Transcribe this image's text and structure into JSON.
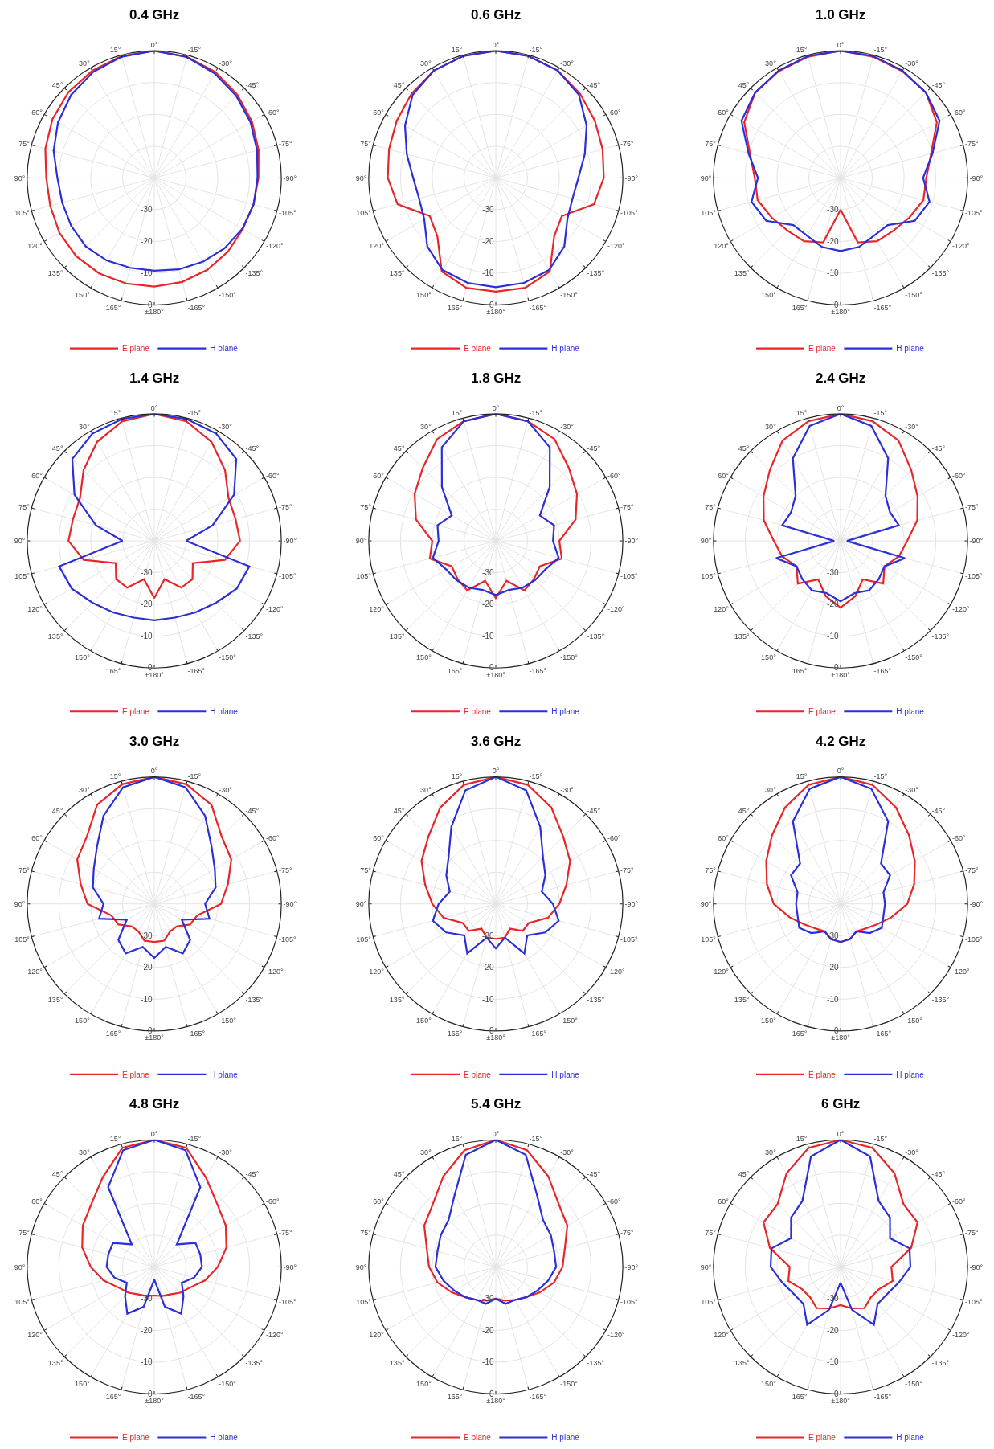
{
  "chart_data": [
    {
      "type": "radar",
      "title": "0.4 GHz",
      "categories": [
        "0°",
        "-15°",
        "-30°",
        "-45°",
        "-60°",
        "-75°",
        "-90°",
        "-105°",
        "-120°",
        "-135°",
        "-150°",
        "-165°",
        "±180°",
        "165°",
        "150°",
        "135°",
        "120°",
        "105°",
        "90°",
        "75°",
        "60°",
        "45°",
        "30°",
        "15°"
      ],
      "ylim": [
        -40,
        0
      ],
      "yticks": [
        -30,
        -20,
        -10,
        0
      ],
      "grid": true,
      "legend": "bottom",
      "series": [
        {
          "name": "E plane",
          "color": "#e8262a",
          "values": [
            0,
            -0.5,
            -1.5,
            -3,
            -4.5,
            -6,
            -7.2,
            -7.7,
            -7.8,
            -7.2,
            -6.6,
            -6.1,
            -5.8,
            -5.6,
            -5.3,
            -5.2,
            -5.5,
            -6.1,
            -6,
            -4.5,
            -3,
            -1.8,
            -1,
            -0.3
          ]
        },
        {
          "name": "H plane",
          "color": "#2b2fd8",
          "values": [
            0,
            -0.6,
            -2,
            -3.5,
            -5,
            -6.5,
            -7.5,
            -7.6,
            -8,
            -8.7,
            -9.5,
            -10.2,
            -10.8,
            -10.7,
            -10,
            -9.5,
            -9.8,
            -10,
            -9.5,
            -7.2,
            -5,
            -3,
            -1.5,
            -0.5
          ]
        }
      ]
    },
    {
      "type": "radar",
      "title": "0.6 GHz",
      "categories": [
        "0°",
        "-15°",
        "-30°",
        "-45°",
        "-60°",
        "-75°",
        "-90°",
        "-105°",
        "-120°",
        "-135°",
        "-150°",
        "-165°",
        "±180°",
        "165°",
        "150°",
        "135°",
        "120°",
        "105°",
        "90°",
        "75°",
        "60°",
        "45°",
        "30°",
        "15°"
      ],
      "ylim": [
        -40,
        0
      ],
      "yticks": [
        -30,
        -20,
        -10,
        0
      ],
      "grid": true,
      "legend": "bottom",
      "series": [
        {
          "name": "E plane",
          "color": "#e8262a",
          "values": [
            0,
            -0.3,
            -1,
            -2.5,
            -4,
            -5.2,
            -6,
            -8,
            -16,
            -14,
            -6,
            -4.2,
            -4.2,
            -4.2,
            -6,
            -14,
            -16,
            -8,
            -6,
            -5.2,
            -4,
            -2.5,
            -1,
            -0.3
          ]
        },
        {
          "name": "H plane",
          "color": "#2b2fd8",
          "values": [
            0,
            -0.3,
            -1,
            -3,
            -7,
            -11,
            -14,
            -15,
            -14,
            -9.5,
            -6.5,
            -5.8,
            -5.6,
            -5.8,
            -6.5,
            -9.5,
            -14,
            -15,
            -14,
            -11,
            -7,
            -3,
            -1,
            -0.3
          ]
        }
      ]
    },
    {
      "type": "radar",
      "title": "1.0 GHz",
      "categories": [
        "0°",
        "-15°",
        "-30°",
        "-45°",
        "-60°",
        "-75°",
        "-90°",
        "-105°",
        "-120°",
        "-135°",
        "-150°",
        "-165°",
        "±180°",
        "165°",
        "150°",
        "135°",
        "120°",
        "105°",
        "90°",
        "75°",
        "60°",
        "45°",
        "30°",
        "15°"
      ],
      "ylim": [
        -40,
        0
      ],
      "yticks": [
        -30,
        -20,
        -10,
        0
      ],
      "grid": true,
      "legend": "bottom",
      "series": [
        {
          "name": "E plane",
          "color": "#e8262a",
          "values": [
            0,
            -0.5,
            -1.2,
            -2,
            -5,
            -10.5,
            -13,
            -13,
            -15,
            -16.5,
            -17,
            -19,
            -30,
            -19,
            -17,
            -16.5,
            -15,
            -13,
            -13,
            -10.5,
            -5,
            -2,
            -1.2,
            -0.5
          ]
        },
        {
          "name": "H plane",
          "color": "#2b2fd8",
          "values": [
            0,
            -0.3,
            -1,
            -2,
            -4,
            -10,
            -14,
            -11,
            -13,
            -19,
            -19,
            -17.5,
            -17,
            -17.5,
            -19,
            -19,
            -13,
            -11,
            -14,
            -10,
            -4,
            -2,
            -1,
            -0.3
          ]
        }
      ]
    },
    {
      "type": "radar",
      "title": "1.4 GHz",
      "categories": [
        "0°",
        "-15°",
        "-30°",
        "-45°",
        "-60°",
        "-75°",
        "-90°",
        "-105°",
        "-120°",
        "-135°",
        "-150°",
        "-165°",
        "±180°",
        "165°",
        "150°",
        "135°",
        "120°",
        "105°",
        "90°",
        "75°",
        "60°",
        "45°",
        "30°",
        "15°"
      ],
      "ylim": [
        -40,
        0
      ],
      "yticks": [
        -30,
        -20,
        -10,
        0
      ],
      "grid": true,
      "legend": "bottom",
      "series": [
        {
          "name": "E plane",
          "color": "#e8262a",
          "values": [
            0,
            -1,
            -4,
            -8.5,
            -13,
            -13.5,
            -13,
            -17,
            -26,
            -23,
            -23,
            -27.5,
            -22,
            -27.5,
            -23,
            -23,
            -26,
            -17,
            -13,
            -13.5,
            -13,
            -8.5,
            -4,
            -1
          ]
        },
        {
          "name": "H plane",
          "color": "#2b2fd8",
          "values": [
            0,
            -0.3,
            -1,
            -3.5,
            -11,
            -21,
            -30,
            -9,
            -10,
            -12.5,
            -14,
            -15,
            -15,
            -15,
            -14,
            -12.5,
            -10,
            -9,
            -30,
            -21,
            -11,
            -3.5,
            -1,
            -0.3
          ]
        }
      ]
    },
    {
      "type": "radar",
      "title": "1.8 GHz",
      "categories": [
        "0°",
        "-15°",
        "-30°",
        "-45°",
        "-60°",
        "-75°",
        "-90°",
        "-105°",
        "-120°",
        "-135°",
        "-150°",
        "-165°",
        "±180°",
        "165°",
        "150°",
        "135°",
        "120°",
        "105°",
        "90°",
        "75°",
        "60°",
        "45°",
        "30°",
        "15°"
      ],
      "ylim": [
        -40,
        0
      ],
      "yticks": [
        -30,
        -20,
        -10,
        0
      ],
      "grid": true,
      "legend": "bottom",
      "series": [
        {
          "name": "E plane",
          "color": "#e8262a",
          "values": [
            0,
            -1,
            -3,
            -7.5,
            -10.5,
            -14,
            -20,
            -18.5,
            -24,
            -23,
            -22,
            -27,
            -22,
            -27,
            -22,
            -23,
            -24,
            -18.5,
            -20,
            -14,
            -10.5,
            -7.5,
            -3,
            -1
          ]
        },
        {
          "name": "H plane",
          "color": "#2b2fd8",
          "values": [
            0,
            -1,
            -6,
            -16,
            -24,
            -21,
            -22,
            -19.5,
            -22,
            -22.5,
            -23,
            -24,
            -23,
            -24,
            -23,
            -22.5,
            -22,
            -19.5,
            -22,
            -21,
            -24,
            -16,
            -6,
            -1
          ]
        }
      ]
    },
    {
      "type": "radar",
      "title": "2.4 GHz",
      "categories": [
        "0°",
        "-15°",
        "-30°",
        "-45°",
        "-60°",
        "-75°",
        "-90°",
        "-105°",
        "-120°",
        "-135°",
        "-150°",
        "-165°",
        "±180°",
        "165°",
        "150°",
        "135°",
        "120°",
        "105°",
        "90°",
        "75°",
        "60°",
        "45°",
        "30°",
        "15°"
      ],
      "ylim": [
        -40,
        0
      ],
      "yticks": [
        -30,
        -20,
        -10,
        0
      ],
      "grid": true,
      "legend": "bottom",
      "series": [
        {
          "name": "E plane",
          "color": "#e8262a",
          "values": [
            0,
            -1,
            -3.5,
            -8.5,
            -12,
            -15,
            -19,
            -21,
            -24,
            -21,
            -26,
            -22,
            -19,
            -22,
            -26,
            -21,
            -24,
            -21,
            -19,
            -15,
            -12,
            -8.5,
            -3.5,
            -1
          ]
        },
        {
          "name": "H plane",
          "color": "#2b2fd8",
          "values": [
            0,
            -2.5,
            -10,
            -20,
            -22,
            -21,
            -38,
            -19,
            -24,
            -23,
            -22,
            -23,
            -21,
            -23,
            -22,
            -23,
            -24,
            -19,
            -38,
            -21,
            -22,
            -20,
            -10,
            -2.5
          ]
        }
      ]
    },
    {
      "type": "radar",
      "title": "3.0 GHz",
      "categories": [
        "0°",
        "-15°",
        "-30°",
        "-45°",
        "-60°",
        "-75°",
        "-90°",
        "-105°",
        "-120°",
        "-135°",
        "-150°",
        "-165°",
        "±180°",
        "165°",
        "150°",
        "135°",
        "120°",
        "105°",
        "90°",
        "75°",
        "60°",
        "45°",
        "30°",
        "15°"
      ],
      "ylim": [
        -40,
        0
      ],
      "yticks": [
        -30,
        -20,
        -10,
        0
      ],
      "grid": true,
      "legend": "bottom",
      "series": [
        {
          "name": "E plane",
          "color": "#e8262a",
          "values": [
            0,
            -1,
            -4,
            -10,
            -12,
            -16,
            -19,
            -26,
            -27,
            -30,
            -30,
            -28,
            -28,
            -28,
            -30,
            -30,
            -27,
            -26,
            -19,
            -16,
            -12,
            -10,
            -4,
            -1
          ]
        },
        {
          "name": "H plane",
          "color": "#2b2fd8",
          "values": [
            0,
            -2,
            -8,
            -14.5,
            -18,
            -20,
            -24,
            -22,
            -30,
            -24,
            -22,
            -26,
            -23,
            -26,
            -22,
            -24,
            -30,
            -22,
            -24,
            -20,
            -18,
            -14.5,
            -8,
            -2
          ]
        }
      ]
    },
    {
      "type": "radar",
      "title": "3.6 GHz",
      "categories": [
        "0°",
        "-15°",
        "-30°",
        "-45°",
        "-60°",
        "-75°",
        "-90°",
        "-105°",
        "-120°",
        "-135°",
        "-150°",
        "-165°",
        "±180°",
        "165°",
        "150°",
        "135°",
        "120°",
        "105°",
        "90°",
        "75°",
        "60°",
        "45°",
        "30°",
        "15°"
      ],
      "ylim": [
        -40,
        0
      ],
      "yticks": [
        -30,
        -20,
        -10,
        0
      ],
      "grid": true,
      "legend": "bottom",
      "series": [
        {
          "name": "E plane",
          "color": "#e8262a",
          "values": [
            0,
            -1.2,
            -5,
            -10,
            -13,
            -17,
            -20,
            -23,
            -28,
            -28,
            -31,
            -29,
            -29,
            -29,
            -31,
            -28,
            -28,
            -23,
            -20,
            -17,
            -13,
            -10,
            -5,
            -1.2
          ]
        },
        {
          "name": "H plane",
          "color": "#2b2fd8",
          "values": [
            0,
            -3,
            -12,
            -19,
            -22,
            -25,
            -22,
            -19.5,
            -22,
            -26,
            -22,
            -29,
            -26,
            -29,
            -22,
            -26,
            -22,
            -19.5,
            -22,
            -25,
            -22,
            -19,
            -12,
            -3
          ]
        }
      ]
    },
    {
      "type": "radar",
      "title": "4.2 GHz",
      "categories": [
        "0°",
        "-15°",
        "-30°",
        "-45°",
        "-60°",
        "-75°",
        "-90°",
        "-105°",
        "-120°",
        "-135°",
        "-150°",
        "-165°",
        "±180°",
        "165°",
        "150°",
        "135°",
        "120°",
        "105°",
        "90°",
        "75°",
        "60°",
        "45°",
        "30°",
        "15°"
      ],
      "ylim": [
        -40,
        0
      ],
      "yticks": [
        -30,
        -20,
        -10,
        0
      ],
      "grid": true,
      "legend": "bottom",
      "series": [
        {
          "name": "E plane",
          "color": "#e8262a",
          "values": [
            0,
            -1.2,
            -5,
            -9.5,
            -13,
            -16,
            -19,
            -23.5,
            -27,
            -29,
            -30,
            -28.5,
            -28,
            -28.5,
            -30,
            -29,
            -27,
            -23.5,
            -19,
            -16,
            -13,
            -9.5,
            -5,
            -1.2
          ]
        },
        {
          "name": "H plane",
          "color": "#2b2fd8",
          "values": [
            0,
            -2.5,
            -10,
            -22,
            -22,
            -26,
            -26,
            -26,
            -25,
            -27,
            -30,
            -28.5,
            -28,
            -28.5,
            -30,
            -27,
            -25,
            -26,
            -26,
            -26,
            -22,
            -22,
            -10,
            -2.5
          ]
        }
      ]
    },
    {
      "type": "radar",
      "title": "4.8 GHz",
      "categories": [
        "0°",
        "-15°",
        "-30°",
        "-45°",
        "-60°",
        "-75°",
        "-90°",
        "-105°",
        "-120°",
        "-135°",
        "-150°",
        "-165°",
        "±180°",
        "165°",
        "150°",
        "135°",
        "120°",
        "105°",
        "90°",
        "75°",
        "60°",
        "45°",
        "30°",
        "15°"
      ],
      "ylim": [
        -40,
        0
      ],
      "yticks": [
        -30,
        -20,
        -10,
        0
      ],
      "grid": true,
      "legend": "bottom",
      "series": [
        {
          "name": "E plane",
          "color": "#e8262a",
          "values": [
            0,
            -1.2,
            -7.5,
            -12,
            -14,
            -16.5,
            -20,
            -23.5,
            -27,
            -28.5,
            -30,
            -30.5,
            -31,
            -30.5,
            -30,
            -28.5,
            -27,
            -23.5,
            -20,
            -16.5,
            -14,
            -12,
            -7.5,
            -1.2
          ]
        },
        {
          "name": "H plane",
          "color": "#2b2fd8",
          "values": [
            0,
            -2,
            -11,
            -30,
            -25,
            -25,
            -25,
            -27,
            -30,
            -27,
            -23,
            -27,
            -36,
            -27,
            -23,
            -27,
            -30,
            -27,
            -25,
            -25,
            -25,
            -30,
            -11,
            -2
          ]
        }
      ]
    },
    {
      "type": "radar",
      "title": "5.4 GHz",
      "categories": [
        "0°",
        "-15°",
        "-30°",
        "-45°",
        "-60°",
        "-75°",
        "-90°",
        "-105°",
        "-120°",
        "-135°",
        "-150°",
        "-165°",
        "±180°",
        "165°",
        "150°",
        "135°",
        "120°",
        "105°",
        "90°",
        "75°",
        "60°",
        "45°",
        "30°",
        "15°"
      ],
      "ylim": [
        -40,
        0
      ],
      "yticks": [
        -30,
        -20,
        -10,
        0
      ],
      "grid": true,
      "legend": "bottom",
      "series": [
        {
          "name": "E plane",
          "color": "#e8262a",
          "values": [
            0,
            -2,
            -7,
            -12,
            -14,
            -17.5,
            -19,
            -21,
            -24,
            -26.5,
            -28,
            -29,
            -30,
            -29,
            -28,
            -26.5,
            -24,
            -21,
            -19,
            -17.5,
            -14,
            -12,
            -7,
            -2
          ]
        },
        {
          "name": "H plane",
          "color": "#2b2fd8",
          "values": [
            0,
            -3.5,
            -14,
            -19,
            -20,
            -21,
            -21,
            -23,
            -25,
            -26.5,
            -28,
            -28,
            -30,
            -28,
            -28,
            -26.5,
            -25,
            -23,
            -21,
            -21,
            -20,
            -19,
            -14,
            -3.5
          ]
        }
      ]
    },
    {
      "type": "radar",
      "title": "6 GHz",
      "categories": [
        "0°",
        "-15°",
        "-30°",
        "-45°",
        "-60°",
        "-75°",
        "-90°",
        "-105°",
        "-120°",
        "-135°",
        "-150°",
        "-165°",
        "±180°",
        "165°",
        "150°",
        "135°",
        "120°",
        "105°",
        "90°",
        "75°",
        "60°",
        "45°",
        "30°",
        "15°"
      ],
      "ylim": [
        -40,
        0
      ],
      "yticks": [
        -30,
        -20,
        -10,
        0
      ],
      "grid": true,
      "legend": "bottom",
      "series": [
        {
          "name": "E plane",
          "color": "#e8262a",
          "values": [
            0,
            -1.2,
            -6,
            -12,
            -12,
            -17,
            -24,
            -23,
            -26,
            -26.5,
            -25,
            -26.5,
            -28,
            -26.5,
            -25,
            -26.5,
            -26,
            -23,
            -24,
            -17,
            -12,
            -12,
            -6,
            -1.2
          ]
        },
        {
          "name": "H plane",
          "color": "#2b2fd8",
          "values": [
            0,
            -4,
            -16,
            -18,
            -22,
            -17.5,
            -18,
            -21,
            -23,
            -23.5,
            -19,
            -26,
            -35,
            -26,
            -19,
            -23.5,
            -23,
            -21,
            -18,
            -17.5,
            -22,
            -18,
            -16,
            -4
          ]
        }
      ]
    }
  ]
}
